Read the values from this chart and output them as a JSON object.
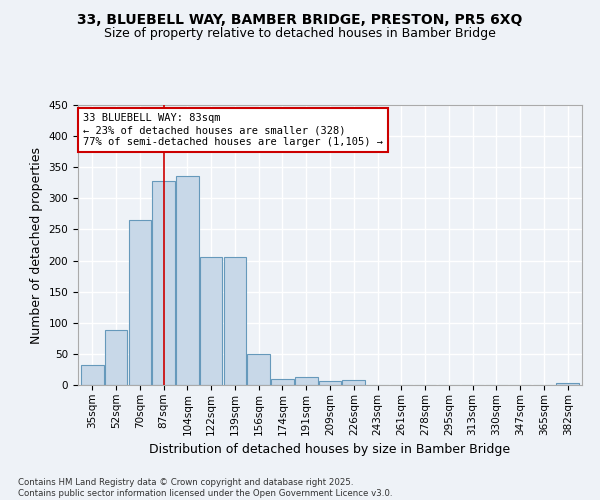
{
  "title_line1": "33, BLUEBELL WAY, BAMBER BRIDGE, PRESTON, PR5 6XQ",
  "title_line2": "Size of property relative to detached houses in Bamber Bridge",
  "xlabel": "Distribution of detached houses by size in Bamber Bridge",
  "ylabel": "Number of detached properties",
  "categories": [
    "35sqm",
    "52sqm",
    "70sqm",
    "87sqm",
    "104sqm",
    "122sqm",
    "139sqm",
    "156sqm",
    "174sqm",
    "191sqm",
    "209sqm",
    "226sqm",
    "243sqm",
    "261sqm",
    "278sqm",
    "295sqm",
    "313sqm",
    "330sqm",
    "347sqm",
    "365sqm",
    "382sqm"
  ],
  "values": [
    32,
    88,
    265,
    328,
    336,
    205,
    205,
    50,
    10,
    13,
    6,
    8,
    0,
    0,
    0,
    0,
    0,
    0,
    0,
    0,
    3
  ],
  "bar_color": "#c8d8e8",
  "bar_edge_color": "#6699bb",
  "annotation_text": "33 BLUEBELL WAY: 83sqm\n← 23% of detached houses are smaller (328)\n77% of semi-detached houses are larger (1,105) →",
  "annotation_box_color": "#ffffff",
  "annotation_box_edge_color": "#cc0000",
  "vline_color": "#cc0000",
  "vline_x": 3.0,
  "ylim": [
    0,
    450
  ],
  "yticks": [
    0,
    50,
    100,
    150,
    200,
    250,
    300,
    350,
    400,
    450
  ],
  "footnote": "Contains HM Land Registry data © Crown copyright and database right 2025.\nContains public sector information licensed under the Open Government Licence v3.0.",
  "bg_color": "#eef2f7",
  "plot_bg_color": "#eef2f7",
  "grid_color": "#ffffff",
  "title_fontsize": 10,
  "subtitle_fontsize": 9,
  "tick_fontsize": 7.5,
  "label_fontsize": 9
}
